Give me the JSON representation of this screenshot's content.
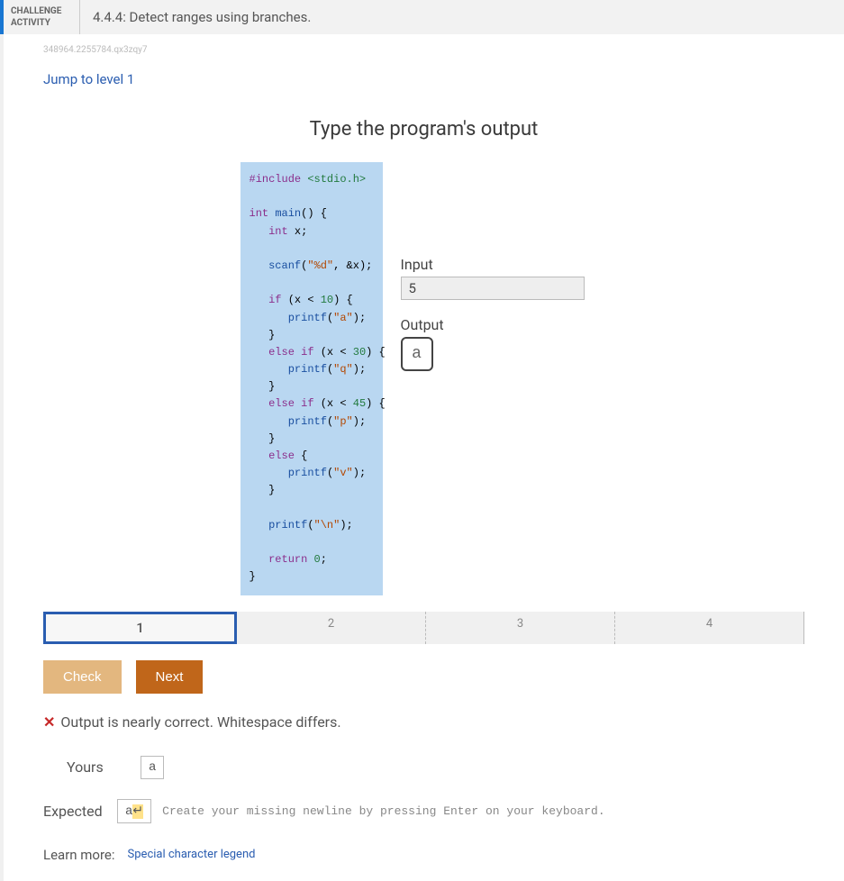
{
  "header": {
    "label_line1": "CHALLENGE",
    "label_line2": "ACTIVITY",
    "title": "4.4.4: Detect ranges using branches."
  },
  "tiny_id": "348964.2255784.qx3zqy7",
  "jump_link": "Jump to level 1",
  "prompt": "Type the program's output",
  "code": {
    "include_kw": "#include",
    "include_lib": "<stdio.h>",
    "int_kw": "int",
    "main_fn": "main",
    "decl": "int x;",
    "scanf_fn": "scanf",
    "scanf_fmt": "\"%d\"",
    "scanf_arg": ", &x);",
    "if_kw": "if",
    "cond1": " (x < ",
    "n10": "10",
    "brace_open": ") {",
    "printf_fn": "printf",
    "str_a": "\"a\"",
    "close_brace": "}",
    "else_if_kw": "else if",
    "cond2": " (x < ",
    "n30": "30",
    "str_q": "\"q\"",
    "cond3": " (x < ",
    "n45": "45",
    "str_p": "\"p\"",
    "else_kw": "else",
    "str_v": "\"v\"",
    "str_nl": "\"\\n\"",
    "return_kw": "return",
    "zero": "0",
    "semi": ";",
    "paren_empty": "() {"
  },
  "io": {
    "input_label": "Input",
    "input_value": "5",
    "output_label": "Output",
    "output_value": "a"
  },
  "levels": {
    "items": [
      "1",
      "2",
      "3",
      "4"
    ],
    "active_index": 0
  },
  "buttons": {
    "check": "Check",
    "next": "Next"
  },
  "feedback": {
    "icon": "✕",
    "message": "Output is nearly correct. Whitespace differs."
  },
  "compare": {
    "yours_label": "Yours",
    "yours_value": "a",
    "expected_label": "Expected",
    "expected_value_plain": "a",
    "expected_value_hl": "↵",
    "hint": "Create your missing newline by pressing Enter on your keyboard."
  },
  "learn": {
    "label": "Learn more:",
    "link": "Special character legend"
  },
  "colors": {
    "accent": "#1976d2",
    "link": "#2a5db0",
    "code_bg": "#b9d7f1",
    "btn_check": "#e3b77f",
    "btn_next": "#c0661a",
    "error": "#c62828",
    "highlight": "#ffe28a"
  }
}
